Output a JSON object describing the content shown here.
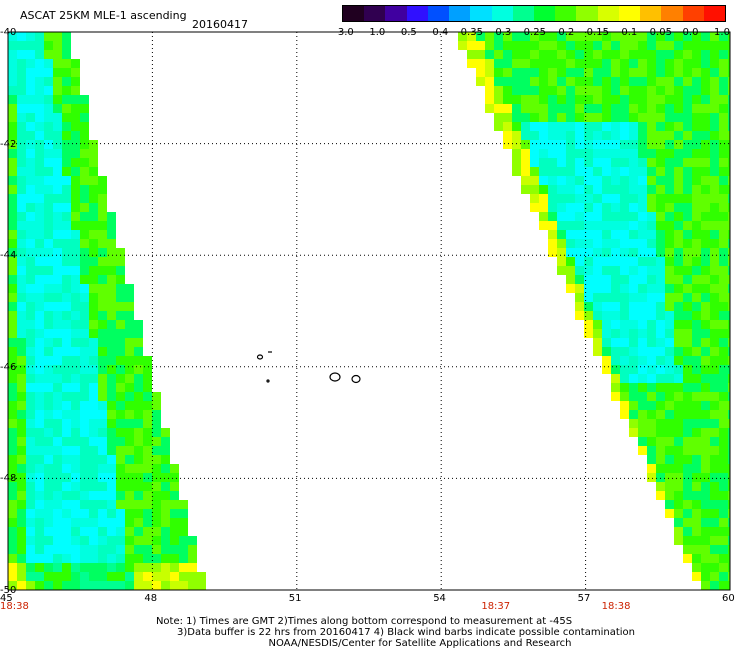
{
  "title": "ASCAT 25KM MLE-1 ascending",
  "date": "20160417",
  "colorbar": {
    "labels": [
      "-3.0",
      "-1.0",
      "-0.5",
      "-0.4",
      "-0.35",
      "-0.3",
      "-0.25",
      "-0.2",
      "-0.15",
      "-0.1",
      "-0.05",
      "0.0",
      "1.0"
    ],
    "colors": [
      "#200020",
      "#300050",
      "#4000a0",
      "#3010ff",
      "#0050ff",
      "#00a0ff",
      "#00e0ff",
      "#00ffe0",
      "#00ff90",
      "#00ff30",
      "#40ff00",
      "#90ff00",
      "#d8ff00",
      "#ffff00",
      "#ffc000",
      "#ff8000",
      "#ff4000",
      "#ff1000"
    ]
  },
  "axes": {
    "x_ticks": [
      "45",
      "48",
      "51",
      "54",
      "57",
      "60"
    ],
    "y_ticks": [
      "-40",
      "-42",
      "-44",
      "-46",
      "-48",
      "-50"
    ]
  },
  "times": [
    {
      "label": "18:38",
      "lon": 45
    },
    {
      "label": "18:37",
      "lon": 55
    },
    {
      "label": "18:38",
      "lon": 57.5
    }
  ],
  "footnotes": [
    "Note: 1) Times are GMT 2)Times along bottom correspond to measurement at -45S",
    "3)Data buffer is 22 hrs from 20160417 4) Black wind barbs indicate possible contamination",
    "NOAA/NESDIS/Center for Satellite Applications and Research"
  ]
}
